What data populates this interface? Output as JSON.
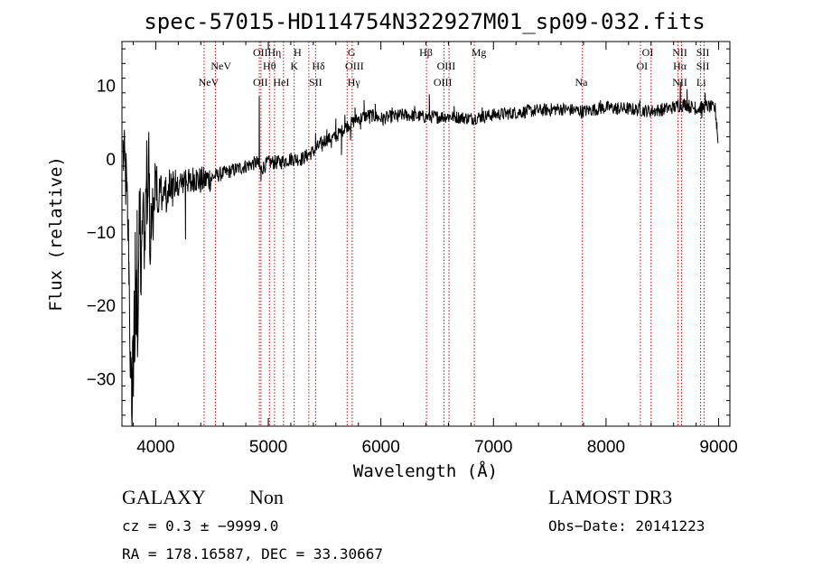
{
  "chart_data": {
    "type": "line",
    "title": "spec-57015-HD114754N322927M01_sp09-032.fits",
    "xlabel": "Wavelength (Å)",
    "ylabel": "Flux (relative)",
    "xlim": [
      3700,
      9100
    ],
    "ylim": [
      -36.5,
      16
    ],
    "xticks": [
      4000,
      5000,
      6000,
      7000,
      8000,
      9000
    ],
    "yticks": [
      10,
      0,
      -10,
      -20,
      -30
    ],
    "ytick_labels": [
      "10",
      "0",
      "−10",
      "−20",
      "−30"
    ],
    "grid": false,
    "spectrum_anchors": [
      [
        3710,
        1
      ],
      [
        3740,
        -4
      ],
      [
        3760,
        -12
      ],
      [
        3775,
        -28
      ],
      [
        3790,
        -34
      ],
      [
        3805,
        -20
      ],
      [
        3815,
        -33
      ],
      [
        3825,
        -15
      ],
      [
        3840,
        -25
      ],
      [
        3855,
        -8
      ],
      [
        3870,
        -18
      ],
      [
        3885,
        -6
      ],
      [
        3900,
        -12
      ],
      [
        3915,
        -3
      ],
      [
        3925,
        -8
      ],
      [
        3935,
        2
      ],
      [
        3950,
        -12
      ],
      [
        3965,
        -4
      ],
      [
        3980,
        -9
      ],
      [
        4000,
        -2
      ],
      [
        4020,
        -8
      ],
      [
        4040,
        -3
      ],
      [
        4060,
        -6
      ],
      [
        4080,
        -4
      ],
      [
        4100,
        -7
      ],
      [
        4120,
        -3
      ],
      [
        4140,
        -5
      ],
      [
        4160,
        -2
      ],
      [
        4180,
        -6
      ],
      [
        4200,
        -3
      ],
      [
        4230,
        -4
      ],
      [
        4260,
        -2
      ],
      [
        4300,
        -3.5
      ],
      [
        4340,
        -2.5
      ],
      [
        4380,
        -3
      ],
      [
        4430,
        -3
      ],
      [
        4500,
        -2.5
      ],
      [
        4600,
        -2
      ],
      [
        4700,
        -1.5
      ],
      [
        4800,
        -1
      ],
      [
        4900,
        -0.5
      ],
      [
        4930,
        -1.5
      ],
      [
        5000,
        -0.5
      ],
      [
        5100,
        -0.5
      ],
      [
        5200,
        0
      ],
      [
        5300,
        0
      ],
      [
        5400,
        1
      ],
      [
        5500,
        2.5
      ],
      [
        5600,
        3
      ],
      [
        5700,
        4.5
      ],
      [
        5800,
        5.5
      ],
      [
        5900,
        6
      ],
      [
        6000,
        5.5
      ],
      [
        6200,
        6
      ],
      [
        6400,
        5.7
      ],
      [
        6600,
        5.8
      ],
      [
        6800,
        5.5
      ],
      [
        7000,
        6
      ],
      [
        7200,
        6.3
      ],
      [
        7400,
        6.6
      ],
      [
        7600,
        6.8
      ],
      [
        7800,
        6.5
      ],
      [
        8000,
        7
      ],
      [
        8200,
        6.8
      ],
      [
        8400,
        6.5
      ],
      [
        8600,
        7
      ],
      [
        8700,
        7.5
      ],
      [
        8800,
        6.8
      ],
      [
        8900,
        7.2
      ],
      [
        8970,
        6.8
      ],
      [
        9000,
        1.5
      ]
    ],
    "spectrum_spikes": [
      [
        3735,
        0.8
      ],
      [
        3742,
        -4.5
      ],
      [
        3750,
        -8
      ],
      [
        3762,
        -14
      ],
      [
        3768,
        -22
      ],
      [
        3778,
        -30
      ],
      [
        3786,
        -35
      ],
      [
        3794,
        -25
      ],
      [
        3802,
        -32.5
      ],
      [
        3808,
        -18
      ],
      [
        3818,
        -10
      ],
      [
        3826,
        -24
      ],
      [
        3835,
        -7
      ],
      [
        3848,
        -15
      ],
      [
        3862,
        -4
      ],
      [
        3875,
        -12
      ],
      [
        3892,
        -5
      ],
      [
        3908,
        -9
      ],
      [
        3920,
        2.5
      ],
      [
        3930,
        -6
      ],
      [
        3945,
        -2
      ],
      [
        3958,
        -11
      ],
      [
        3972,
        -4
      ],
      [
        3990,
        -7
      ],
      [
        4010,
        -1
      ],
      [
        4030,
        -6
      ],
      [
        4048,
        -2.5
      ],
      [
        4070,
        -5
      ],
      [
        4090,
        -2.5
      ],
      [
        4110,
        -6
      ],
      [
        4135,
        -2
      ],
      [
        4150,
        -6.5
      ],
      [
        4175,
        -1.5
      ],
      [
        4195,
        -5
      ],
      [
        4220,
        -2
      ],
      [
        4265,
        -11
      ],
      [
        4290,
        -2
      ],
      [
        4310,
        -4.5
      ],
      [
        4360,
        -1.5
      ],
      [
        4400,
        -4
      ],
      [
        4450,
        -2
      ],
      [
        4480,
        -4
      ],
      [
        4920,
        8.5
      ],
      [
        4935,
        -3
      ],
      [
        5350,
        0.5
      ],
      [
        5420,
        3.5
      ],
      [
        5480,
        1
      ],
      [
        5520,
        4
      ],
      [
        5560,
        1.5
      ],
      [
        5600,
        5.5
      ],
      [
        5650,
        0.5
      ],
      [
        5680,
        6
      ],
      [
        5730,
        2.5
      ],
      [
        5770,
        7
      ],
      [
        5820,
        4
      ],
      [
        5850,
        8
      ],
      [
        5900,
        4.8
      ],
      [
        5950,
        7.5
      ],
      [
        6020,
        4.5
      ],
      [
        6100,
        7
      ],
      [
        6150,
        5
      ],
      [
        6300,
        7.2
      ],
      [
        6430,
        8.8
      ],
      [
        6500,
        4.8
      ],
      [
        6650,
        7.2
      ],
      [
        6820,
        4.8
      ],
      [
        6900,
        7
      ],
      [
        7150,
        5.5
      ],
      [
        7300,
        7.3
      ],
      [
        7550,
        6
      ],
      [
        7780,
        5.5
      ],
      [
        7950,
        8
      ],
      [
        8100,
        6
      ],
      [
        8300,
        8
      ],
      [
        8500,
        5.8
      ],
      [
        8640,
        8
      ],
      [
        8660,
        10.5
      ],
      [
        8680,
        6.5
      ],
      [
        8720,
        9.5
      ],
      [
        8740,
        6.2
      ],
      [
        8790,
        7.8
      ],
      [
        8850,
        5.5
      ],
      [
        8880,
        9
      ],
      [
        8950,
        7.5
      ],
      [
        8985,
        5
      ]
    ]
  },
  "spectral_lines": [
    {
      "label": "NeV",
      "wl": 4470,
      "row": 2
    },
    {
      "label": "NeV",
      "wl": 4580,
      "row": 1
    },
    {
      "label": "OII",
      "wl": 4930,
      "row": 0
    },
    {
      "label": "OII",
      "wl": 4930,
      "row": 2
    },
    {
      "label": "Hη",
      "wl": 5055,
      "row": 0
    },
    {
      "label": "Hθ",
      "wl": 5010,
      "row": 1
    },
    {
      "label": "HeI",
      "wl": 5115,
      "row": 2
    },
    {
      "label": "H",
      "wl": 5260,
      "row": 0
    },
    {
      "label": "K",
      "wl": 5230,
      "row": 1
    },
    {
      "label": "Hδ",
      "wl": 5445,
      "row": 1
    },
    {
      "label": "SII",
      "wl": 5420,
      "row": 2
    },
    {
      "label": "G",
      "wl": 5740,
      "row": 0
    },
    {
      "label": "OIII",
      "wl": 5765,
      "row": 1
    },
    {
      "label": "Hγ",
      "wl": 5760,
      "row": 2
    },
    {
      "label": "Hβ",
      "wl": 6400,
      "row": 0
    },
    {
      "label": "OIII",
      "wl": 6580,
      "row": 1
    },
    {
      "label": "OIII",
      "wl": 6550,
      "row": 2
    },
    {
      "label": "Mg",
      "wl": 6870,
      "row": 0
    },
    {
      "label": "Na",
      "wl": 7780,
      "row": 2
    },
    {
      "label": "OI",
      "wl": 8370,
      "row": 0
    },
    {
      "label": "OI",
      "wl": 8320,
      "row": 1
    },
    {
      "label": "NII",
      "wl": 8655,
      "row": 0
    },
    {
      "label": "Hα",
      "wl": 8655,
      "row": 1
    },
    {
      "label": "NII",
      "wl": 8655,
      "row": 2
    },
    {
      "label": "SII",
      "wl": 8860,
      "row": 0
    },
    {
      "label": "SII",
      "wl": 8860,
      "row": 1
    },
    {
      "label": "Li",
      "wl": 8845,
      "row": 2
    }
  ],
  "marker_lines": [
    4430,
    4530,
    4920,
    4935,
    5010,
    5055,
    5135,
    5230,
    5360,
    5420,
    5700,
    5745,
    6405,
    6560,
    6605,
    6830,
    7790,
    8305,
    8400,
    8640,
    8670,
    8840,
    8870
  ],
  "colors": {
    "spectrum": "#000000",
    "marker_line": "#cc0000",
    "axis": "#000000"
  },
  "footer": {
    "object_class": "GALAXY",
    "subclass": "Non",
    "survey": "LAMOST DR3",
    "cz": "cz = 0.3 ± −9999.0",
    "obs_date": "Obs−Date: 20141223",
    "coords": "RA = 178.16587, DEC =  33.30667"
  }
}
